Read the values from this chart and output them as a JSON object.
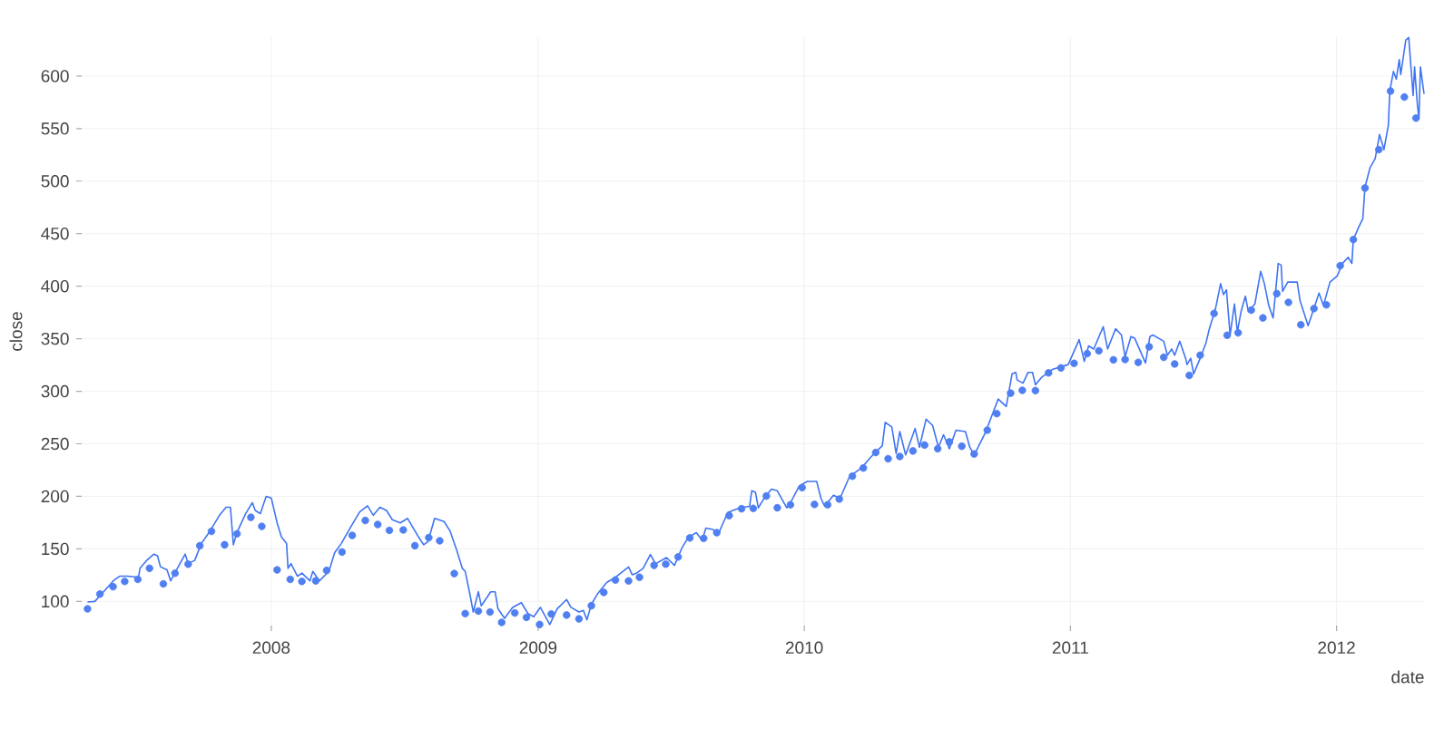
{
  "chart_data": {
    "type": "line",
    "xlabel": "date",
    "ylabel": "close",
    "xlim": [
      "2007-04-16",
      "2012-04-30"
    ],
    "ylim": [
      77,
      637
    ],
    "xticks": [
      "2008",
      "2009",
      "2010",
      "2011",
      "2012"
    ],
    "yticks": [
      100,
      150,
      200,
      250,
      300,
      350,
      400,
      450,
      500,
      550,
      600
    ],
    "grid": true,
    "series": [
      {
        "color": "#3f74f2",
        "line_style": "solid",
        "x": [
          "2007-04-24",
          "2007-05-04",
          "2007-05-30",
          "2007-06-07",
          "2007-06-18",
          "2007-07-03",
          "2007-07-05",
          "2007-07-14",
          "2007-07-24",
          "2007-07-29",
          "2007-08-02",
          "2007-08-11",
          "2007-08-16",
          "2007-08-23",
          "2007-09-05",
          "2007-09-09",
          "2007-09-18",
          "2007-09-27",
          "2007-10-09",
          "2007-10-22",
          "2007-10-31",
          "2007-11-06",
          "2007-11-10",
          "2007-11-15",
          "2007-11-27",
          "2007-12-06",
          "2007-12-10",
          "2007-12-17",
          "2007-12-25",
          "2008-01-01",
          "2008-01-09",
          "2008-01-15",
          "2008-01-22",
          "2008-01-24",
          "2008-01-28",
          "2008-02-06",
          "2008-02-12",
          "2008-02-23",
          "2008-02-27",
          "2008-03-07",
          "2008-03-20",
          "2008-03-28",
          "2008-04-06",
          "2008-04-16",
          "2008-05-01",
          "2008-05-12",
          "2008-05-20",
          "2008-05-29",
          "2008-06-07",
          "2008-06-15",
          "2008-06-26",
          "2008-07-06",
          "2008-07-21",
          "2008-07-28",
          "2008-08-03",
          "2008-08-12",
          "2008-08-25",
          "2008-09-02",
          "2008-09-11",
          "2008-09-19",
          "2008-09-23",
          "2008-09-30",
          "2008-10-04",
          "2008-10-11",
          "2008-10-15",
          "2008-10-28",
          "2008-11-03",
          "2008-11-07",
          "2008-11-16",
          "2008-11-27",
          "2008-12-09",
          "2008-12-18",
          "2008-12-26",
          "2009-01-04",
          "2009-01-17",
          "2009-01-27",
          "2009-02-09",
          "2009-02-15",
          "2009-02-26",
          "2009-03-04",
          "2009-03-09",
          "2009-03-15",
          "2009-03-24",
          "2009-04-05",
          "2009-04-16",
          "2009-05-05",
          "2009-05-10",
          "2009-05-16",
          "2009-05-25",
          "2009-06-04",
          "2009-06-11",
          "2009-06-26",
          "2009-07-07",
          "2009-07-17",
          "2009-07-26",
          "2009-08-06",
          "2009-08-14",
          "2009-08-19",
          "2009-08-29",
          "2009-09-05",
          "2009-09-18",
          "2009-10-05",
          "2009-10-18",
          "2009-10-21",
          "2009-10-26",
          "2009-10-30",
          "2009-11-08",
          "2009-11-17",
          "2009-11-25",
          "2009-12-08",
          "2009-12-14",
          "2009-12-25",
          "2010-01-05",
          "2010-01-18",
          "2010-01-24",
          "2010-01-29",
          "2010-02-10",
          "2010-02-19",
          "2010-03-04",
          "2010-03-21",
          "2010-04-03",
          "2010-04-18",
          "2010-04-22",
          "2010-05-01",
          "2010-05-07",
          "2010-05-12",
          "2010-05-20",
          "2010-06-02",
          "2010-06-08",
          "2010-06-17",
          "2010-06-26",
          "2010-07-04",
          "2010-07-11",
          "2010-07-19",
          "2010-07-28",
          "2010-08-10",
          "2010-08-16",
          "2010-08-22",
          "2010-09-06",
          "2010-09-24",
          "2010-10-05",
          "2010-10-13",
          "2010-10-18",
          "2010-10-20",
          "2010-10-28",
          "2010-11-04",
          "2010-11-10",
          "2010-11-14",
          "2010-11-23",
          "2010-12-08",
          "2010-12-29",
          "2011-01-13",
          "2011-01-20",
          "2011-01-26",
          "2011-02-02",
          "2011-02-15",
          "2011-02-21",
          "2011-03-04",
          "2011-03-12",
          "2011-03-17",
          "2011-03-25",
          "2011-03-30",
          "2011-04-14",
          "2011-04-20",
          "2011-04-24",
          "2011-05-09",
          "2011-05-14",
          "2011-05-20",
          "2011-05-24",
          "2011-05-31",
          "2011-06-08",
          "2011-06-10",
          "2011-06-15",
          "2011-06-19",
          "2011-06-28",
          "2011-07-06",
          "2011-07-10",
          "2011-07-19",
          "2011-07-26",
          "2011-07-30",
          "2011-08-03",
          "2011-08-08",
          "2011-08-14",
          "2011-08-18",
          "2011-08-23",
          "2011-08-29",
          "2011-09-02",
          "2011-09-11",
          "2011-09-19",
          "2011-09-24",
          "2011-09-30",
          "2011-10-06",
          "2011-10-13",
          "2011-10-17",
          "2011-10-19",
          "2011-10-26",
          "2011-11-08",
          "2011-11-12",
          "2011-11-23",
          "2011-12-08",
          "2011-12-14",
          "2011-12-23",
          "2012-01-02",
          "2012-01-09",
          "2012-01-17",
          "2012-01-22",
          "2012-01-24",
          "2012-01-31",
          "2012-02-06",
          "2012-02-09",
          "2012-02-16",
          "2012-02-23",
          "2012-02-29",
          "2012-03-06",
          "2012-03-12",
          "2012-03-14",
          "2012-03-19",
          "2012-03-23",
          "2012-03-27",
          "2012-03-29",
          "2012-04-05",
          "2012-04-09",
          "2012-04-15",
          "2012-04-17",
          "2012-04-21",
          "2012-04-23",
          "2012-04-25",
          "2012-04-30"
        ],
        "values": [
          99.4,
          100,
          120,
          124,
          124,
          123,
          131.5,
          139,
          145,
          143.5,
          133,
          130,
          119.6,
          128.6,
          145,
          136,
          139,
          155,
          167,
          182,
          189.6,
          189.6,
          153.9,
          165.8,
          183.6,
          194,
          186.6,
          183.6,
          200,
          198.5,
          174.7,
          161.3,
          155,
          131.5,
          136,
          124,
          127,
          119.6,
          128.6,
          119.6,
          128.6,
          146.4,
          155,
          167.3,
          185,
          191,
          182,
          189.6,
          186.6,
          177.7,
          174.7,
          179,
          161.3,
          153.9,
          157,
          179,
          176,
          167.3,
          149.4,
          131.5,
          128.6,
          104.8,
          89.9,
          109.2,
          95.8,
          109.2,
          109.2,
          92.9,
          83.9,
          94.3,
          98.8,
          88.4,
          85.4,
          94.3,
          78,
          92.9,
          101.8,
          94.4,
          90,
          91.4,
          82.5,
          97.3,
          107.7,
          118,
          122.5,
          132.8,
          125.4,
          126.9,
          131.4,
          144.7,
          135.8,
          141.7,
          134.3,
          150.6,
          161,
          165.4,
          158,
          169.8,
          168.4,
          163.9,
          184.6,
          189.1,
          190.5,
          205.3,
          203.9,
          189,
          199.4,
          206.8,
          205.3,
          189.1,
          195,
          209.8,
          214.2,
          214.2,
          198,
          190.5,
          201,
          198,
          218.7,
          227.5,
          237.9,
          248.2,
          270.4,
          266,
          240.8,
          261.6,
          239.4,
          264.5,
          246.8,
          273.4,
          267.5,
          246.8,
          258.6,
          245.3,
          263,
          261.6,
          246.8,
          239.4,
          260,
          292.6,
          285.5,
          316.6,
          318,
          310.7,
          307.7,
          318,
          318,
          306.2,
          313.6,
          321,
          325.4,
          349.1,
          328.4,
          343.2,
          340.2,
          361.5,
          340.2,
          359.5,
          353.6,
          332.8,
          352.1,
          350.6,
          326.9,
          352.1,
          353.6,
          347.6,
          334.3,
          340.2,
          334.3,
          347.6,
          331.4,
          325.4,
          331.4,
          316.6,
          331.4,
          346.2,
          358,
          378.7,
          402.4,
          392,
          396.5,
          353.6,
          383.1,
          356.5,
          375.8,
          390.5,
          375.8,
          383.1,
          414.2,
          402.4,
          381.7,
          369.8,
          421.6,
          420.1,
          395,
          403.9,
          403.9,
          386.1,
          362.4,
          393.5,
          381.7,
          403.9,
          409.8,
          421.6,
          427.5,
          421.6,
          444.3,
          455.7,
          464.3,
          494.3,
          512.9,
          521.4,
          544.3,
          530,
          552.9,
          585.7,
          604.3,
          597.1,
          615.7,
          601.4,
          634.3,
          636.6,
          581.4,
          608.6,
          571.4,
          560,
          608.6,
          582.9
        ]
      },
      {
        "type": "scatter",
        "color": "#4f7ff0",
        "x": [
          "2007-04-24",
          "2007-05-11",
          "2007-05-29",
          "2007-06-14",
          "2007-07-02",
          "2007-07-18",
          "2007-08-06",
          "2007-08-22",
          "2007-09-09",
          "2007-09-25",
          "2007-10-11",
          "2007-10-29",
          "2007-11-15",
          "2007-12-04",
          "2007-12-19",
          "2008-01-09",
          "2008-01-27",
          "2008-02-12",
          "2008-03-02",
          "2008-03-17",
          "2008-04-07",
          "2008-04-21",
          "2008-05-09",
          "2008-05-26",
          "2008-06-11",
          "2008-06-30",
          "2008-07-16",
          "2008-08-04",
          "2008-08-19",
          "2008-09-08",
          "2008-09-23",
          "2008-10-11",
          "2008-10-27",
          "2008-11-12",
          "2008-11-30",
          "2008-12-16",
          "2009-01-03",
          "2009-01-19",
          "2009-02-09",
          "2009-02-26",
          "2009-03-15",
          "2009-04-01",
          "2009-04-17",
          "2009-05-05",
          "2009-05-20",
          "2009-06-09",
          "2009-06-25",
          "2009-07-12",
          "2009-07-28",
          "2009-08-16",
          "2009-09-03",
          "2009-09-20",
          "2009-10-07",
          "2009-10-23",
          "2009-11-10",
          "2009-11-25",
          "2009-12-13",
          "2009-12-29",
          "2010-01-15",
          "2010-02-02",
          "2010-02-18",
          "2010-03-08",
          "2010-03-23",
          "2010-04-09",
          "2010-04-26",
          "2010-05-12",
          "2010-05-30",
          "2010-06-15",
          "2010-07-03",
          "2010-07-19",
          "2010-08-05",
          "2010-08-22",
          "2010-09-09",
          "2010-09-22",
          "2010-10-11",
          "2010-10-27",
          "2010-11-14",
          "2010-12-02",
          "2010-12-19",
          "2011-01-06",
          "2011-01-24",
          "2011-02-09",
          "2011-03-01",
          "2011-03-17",
          "2011-04-04",
          "2011-04-19",
          "2011-05-09",
          "2011-05-24",
          "2011-06-13",
          "2011-06-28",
          "2011-07-17",
          "2011-08-04",
          "2011-08-19",
          "2011-09-06",
          "2011-09-22",
          "2011-10-11",
          "2011-10-27",
          "2011-11-13",
          "2011-12-01",
          "2011-12-18",
          "2012-01-06",
          "2012-01-24",
          "2012-02-09",
          "2012-02-28",
          "2012-03-15",
          "2012-04-03",
          "2012-04-19"
        ],
        "values": [
          92.9,
          107,
          114,
          119,
          121,
          131.5,
          116.7,
          126.8,
          135.4,
          153,
          166.7,
          153.9,
          164.3,
          180,
          171.4,
          130,
          121,
          119,
          119.6,
          129.5,
          147,
          162.8,
          177,
          173.2,
          167.6,
          168,
          153,
          160.7,
          157.7,
          126.5,
          88.4,
          90.8,
          89.9,
          80,
          89,
          84.8,
          78,
          88,
          87,
          83.4,
          95.9,
          108.6,
          120.4,
          119.5,
          123,
          134.3,
          135.5,
          142.3,
          160.4,
          160,
          165.4,
          181.7,
          188.2,
          188.5,
          200.3,
          189.1,
          192,
          208.3,
          192.3,
          192,
          197.4,
          219.2,
          227,
          241.7,
          235.8,
          237.9,
          243.2,
          248.8,
          245.3,
          251.8,
          247.7,
          240.3,
          263,
          278.7,
          298.2,
          300.9,
          300.6,
          317.5,
          322.2,
          326.6,
          335.8,
          338.5,
          329.9,
          330.2,
          327.5,
          342.3,
          332.3,
          326,
          315.1,
          334.3,
          374,
          353.3,
          355.6,
          377.2,
          369.8,
          392.9,
          384.6,
          363.3,
          378.7,
          382.3,
          419.5,
          444.4,
          493.4,
          530,
          585.7,
          580,
          560
        ]
      }
    ]
  }
}
